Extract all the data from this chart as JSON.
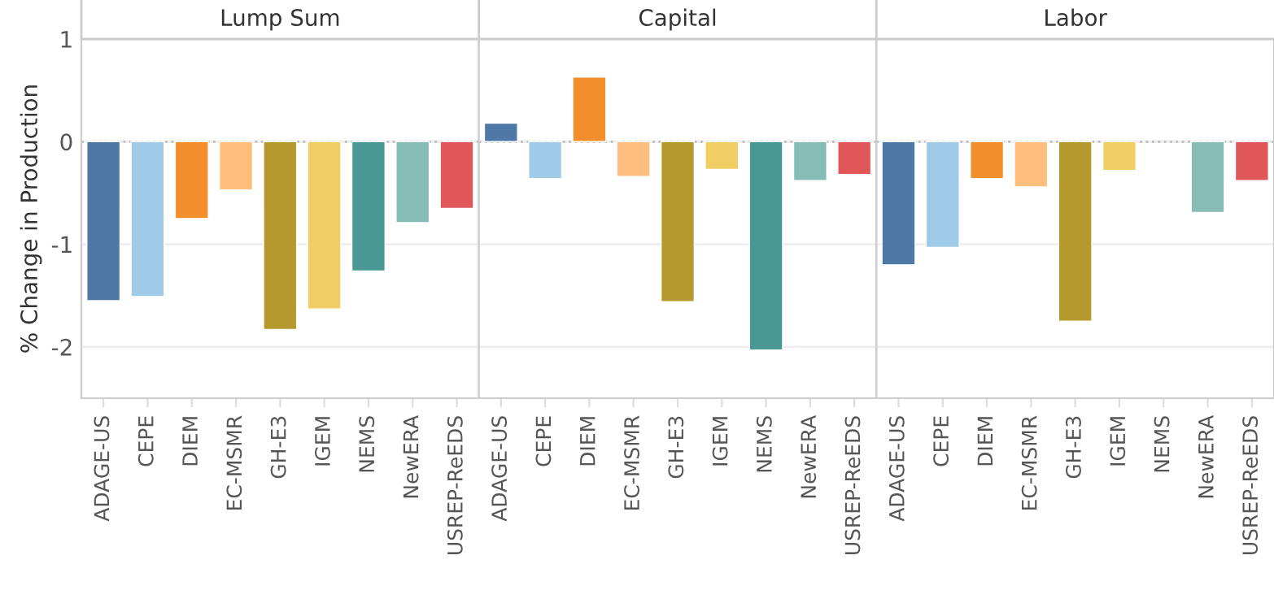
{
  "chart_data": [
    {
      "type": "bar",
      "title": "Lump Sum",
      "ylabel": "% Change in Production",
      "categories": [
        "ADAGE-US",
        "CEPE",
        "DIEM",
        "EC-MSMR",
        "GH-E3",
        "IGEM",
        "NEMS",
        "NewERA",
        "USREP-ReEDS"
      ],
      "values": [
        -1.55,
        -1.51,
        -0.75,
        -0.47,
        -1.83,
        -1.63,
        -1.26,
        -0.79,
        -0.65
      ],
      "colors": [
        "#4e79a7",
        "#a0cbe8",
        "#f28e2b",
        "#ffbe7d",
        "#b6992d",
        "#f1ce63",
        "#499894",
        "#86bcb6",
        "#e15759"
      ],
      "ylim": [
        -2.5,
        1
      ],
      "yticks": [
        -2,
        -1,
        0,
        1
      ],
      "grid": "y",
      "ref_lines": [
        {
          "axis": "y",
          "value": 0,
          "color": "#bbbbbb",
          "line_style": "dotted"
        }
      ]
    },
    {
      "type": "bar",
      "title": "Capital",
      "categories": [
        "ADAGE-US",
        "CEPE",
        "DIEM",
        "EC-MSMR",
        "GH-E3",
        "IGEM",
        "NEMS",
        "NewERA",
        "USREP-ReEDS"
      ],
      "values": [
        0.18,
        -0.36,
        0.63,
        -0.34,
        -1.56,
        -0.27,
        -2.03,
        -0.38,
        -0.32
      ],
      "colors": [
        "#4e79a7",
        "#a0cbe8",
        "#f28e2b",
        "#ffbe7d",
        "#b6992d",
        "#f1ce63",
        "#499894",
        "#86bcb6",
        "#e15759"
      ],
      "ylim": [
        -2.5,
        1
      ],
      "grid": "y",
      "tick_labels": "x",
      "ref_lines": [
        {
          "axis": "y",
          "value": 0,
          "color": "#bbbbbb",
          "line_style": "dotted"
        }
      ]
    },
    {
      "type": "bar",
      "title": "Labor",
      "categories": [
        "ADAGE-US",
        "CEPE",
        "DIEM",
        "EC-MSMR",
        "GH-E3",
        "IGEM",
        "NEMS",
        "NewERA",
        "USREP-ReEDS"
      ],
      "values": [
        -1.2,
        -1.03,
        -0.36,
        -0.44,
        -1.75,
        -0.28,
        null,
        -0.69,
        -0.38
      ],
      "colors": [
        "#4e79a7",
        "#a0cbe8",
        "#f28e2b",
        "#ffbe7d",
        "#b6992d",
        "#f1ce63",
        "#499894",
        "#86bcb6",
        "#e15759"
      ],
      "ylim": [
        -2.5,
        1
      ],
      "grid": "y",
      "tick_labels": "x",
      "ref_lines": [
        {
          "axis": "y",
          "value": 0,
          "color": "#bbbbbb",
          "line_style": "dotted"
        }
      ]
    }
  ]
}
